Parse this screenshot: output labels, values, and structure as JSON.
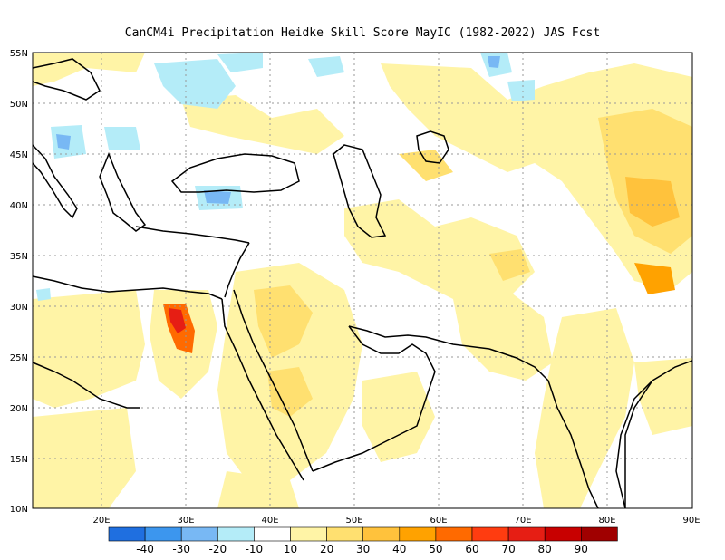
{
  "title": "CanCM4i  Precipitation Heidke Skill Score MayIC (1982-2022) JAS Fcst",
  "axes": {
    "x_ticks": [
      "20E",
      "30E",
      "40E",
      "50E",
      "60E",
      "70E",
      "80E",
      "90E"
    ],
    "y_ticks": [
      "55N",
      "50N",
      "45N",
      "40N",
      "35N",
      "30N",
      "25N",
      "20N",
      "15N",
      "10N"
    ]
  },
  "legend": {
    "colors": [
      "#1f6fe0",
      "#3c96ee",
      "#78b8f4",
      "#b4ecf8",
      "#ffffff",
      "#fff4a6",
      "#ffe070",
      "#ffc23c",
      "#ffa200",
      "#ff6a00",
      "#ff3c10",
      "#e61e14",
      "#c80000",
      "#a00000"
    ],
    "labels": [
      "-40",
      "-30",
      "-20",
      "-10",
      "10",
      "20",
      "30",
      "40",
      "50",
      "60",
      "70",
      "80",
      "90"
    ]
  }
}
